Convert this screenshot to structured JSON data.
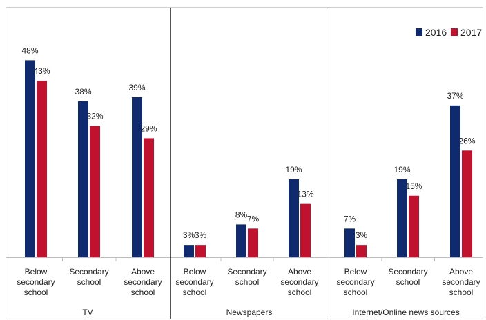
{
  "chart_data": {
    "type": "bar",
    "legend_position": "top-right",
    "series": [
      {
        "name": "2016",
        "color": "#0f2a6e"
      },
      {
        "name": "2017",
        "color": "#c0122f"
      }
    ],
    "panels": [
      {
        "label": "TV",
        "categories": [
          "Below secondary school",
          "Secondary school",
          "Above secondary school"
        ],
        "values_2016": [
          48,
          38,
          39
        ],
        "values_2017": [
          43,
          32,
          29
        ]
      },
      {
        "label": "Newspapers",
        "categories": [
          "Below secondary school",
          "Secondary school",
          "Above secondary school"
        ],
        "values_2016": [
          3,
          8,
          19
        ],
        "values_2017": [
          3,
          7,
          13
        ]
      },
      {
        "label": "Internet/Online news sources",
        "categories": [
          "Below secondary school",
          "Secondary school",
          "Above secondary school"
        ],
        "values_2016": [
          7,
          19,
          37
        ],
        "values_2017": [
          3,
          15,
          26
        ]
      }
    ],
    "tick_lines": [
      [
        "Below",
        "secondary",
        "school"
      ],
      [
        "Secondary",
        "school"
      ],
      [
        "Above",
        "secondary",
        "school"
      ]
    ],
    "value_suffix": "%",
    "ylim": [
      0,
      50
    ],
    "grid": false
  }
}
